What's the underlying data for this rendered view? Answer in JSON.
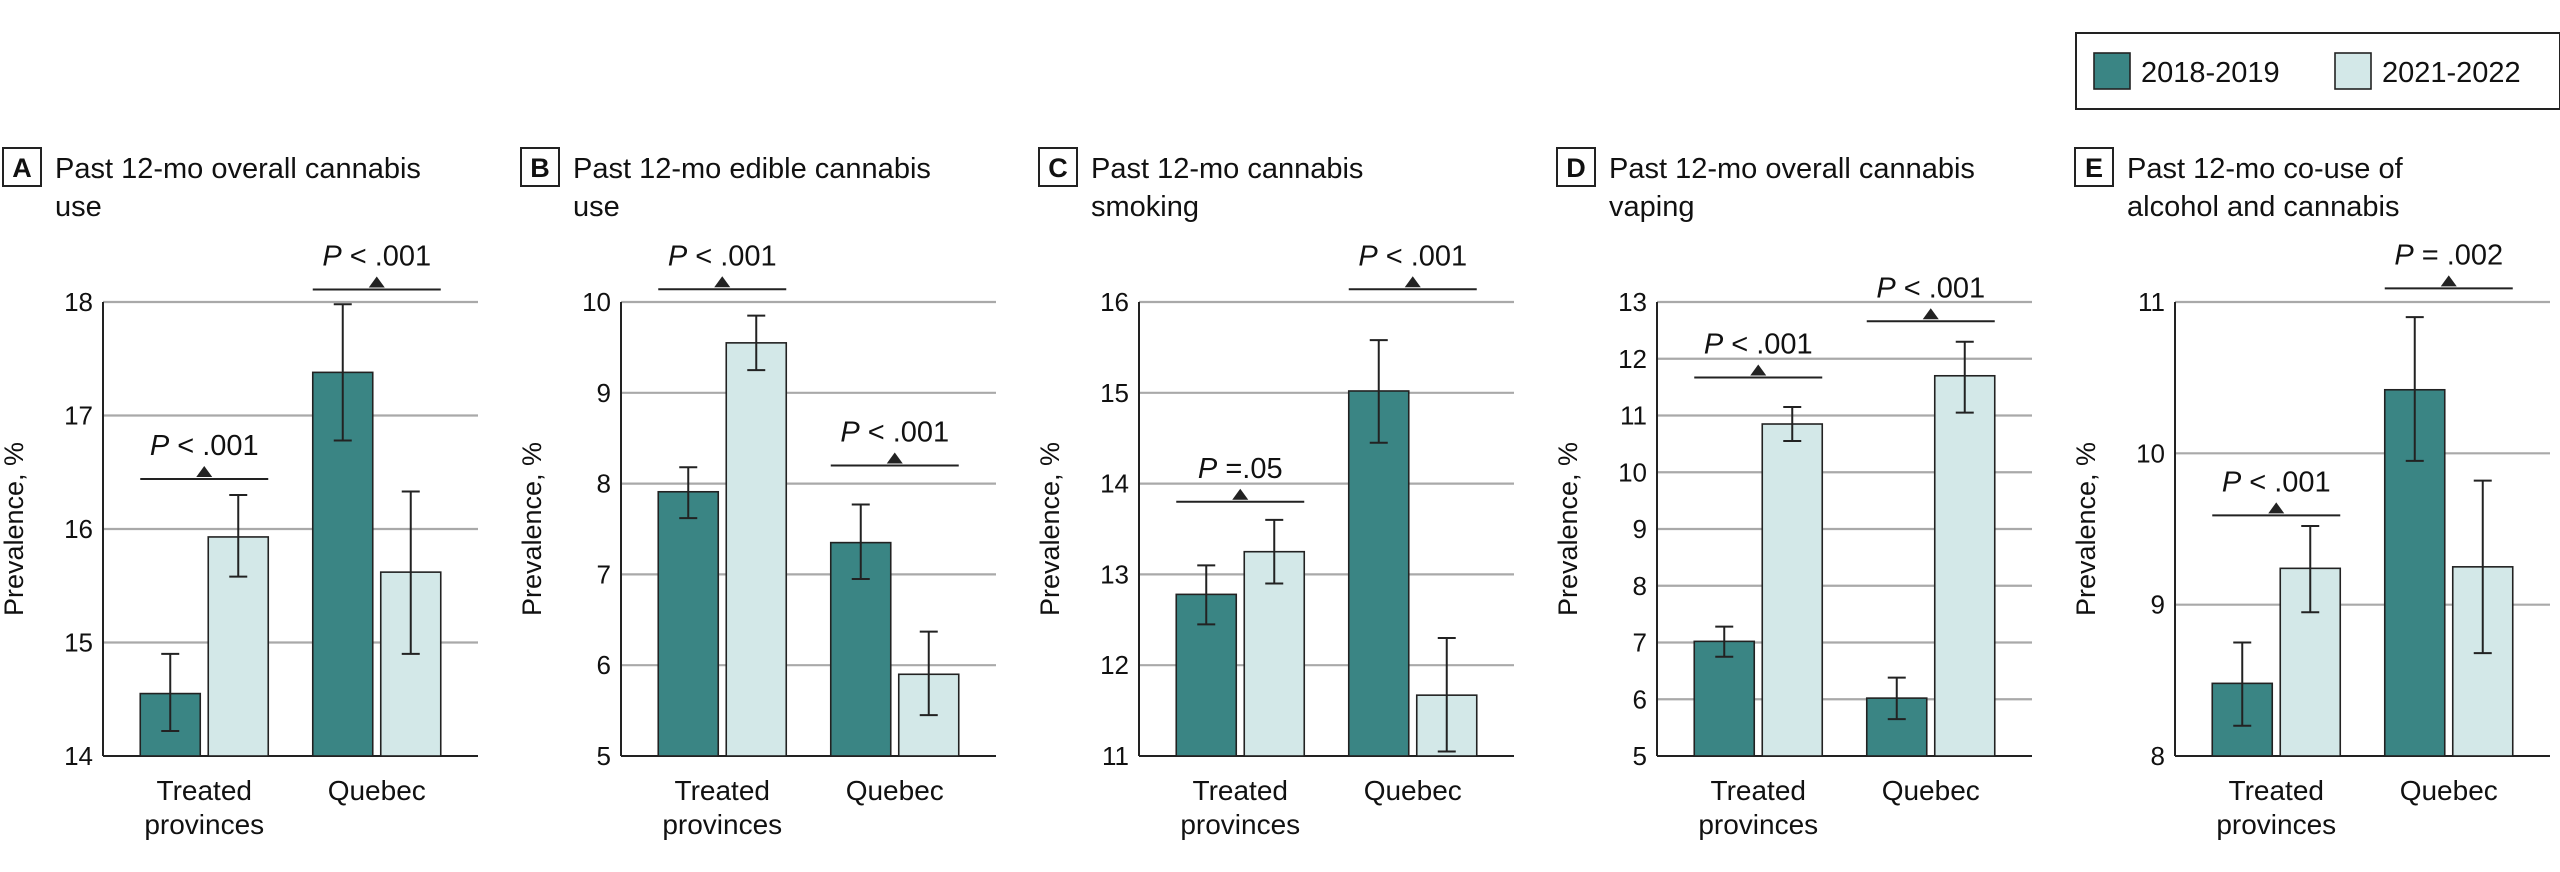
{
  "legend": {
    "items": [
      {
        "label": "2018-2019",
        "color": "#3a8584"
      },
      {
        "label": "2021-2022",
        "color": "#d3e8e8"
      }
    ]
  },
  "yaxis_label": "Prevalence, %",
  "chart_data": [
    {
      "type": "bar",
      "panel": "A",
      "title_lines": [
        "Past 12-mo overall cannabis",
        "use"
      ],
      "ylabel": "Prevalence, %",
      "ylim": [
        14,
        18
      ],
      "yticks": [
        14,
        15,
        16,
        17,
        18
      ],
      "categories": [
        [
          "Treated",
          "provinces"
        ],
        [
          "Quebec"
        ]
      ],
      "series": [
        {
          "name": "2018-2019",
          "values": [
            14.55,
            17.38
          ],
          "ci_low": [
            14.22,
            16.78
          ],
          "ci_high": [
            14.9,
            17.98
          ]
        },
        {
          "name": "2021-2022",
          "values": [
            15.93,
            15.62
          ],
          "ci_low": [
            15.58,
            14.9
          ],
          "ci_high": [
            16.3,
            16.33
          ]
        }
      ],
      "comparisons": [
        {
          "label": "P < .001",
          "category": 0,
          "y": 16.44
        },
        {
          "label": "P < .001",
          "category": 1,
          "y": 18.11
        }
      ]
    },
    {
      "type": "bar",
      "panel": "B",
      "title_lines": [
        "Past 12-mo edible cannabis",
        "use"
      ],
      "ylabel": "Prevalence, %",
      "ylim": [
        5,
        10
      ],
      "yticks": [
        5,
        6,
        7,
        8,
        9,
        10
      ],
      "categories": [
        [
          "Treated",
          "provinces"
        ],
        [
          "Quebec"
        ]
      ],
      "series": [
        {
          "name": "2018-2019",
          "values": [
            7.91,
            7.35
          ],
          "ci_low": [
            7.62,
            6.95
          ],
          "ci_high": [
            8.18,
            7.77
          ]
        },
        {
          "name": "2021-2022",
          "values": [
            9.55,
            5.9
          ],
          "ci_low": [
            9.25,
            5.45
          ],
          "ci_high": [
            9.85,
            6.37
          ]
        }
      ],
      "comparisons": [
        {
          "label": "P < .001",
          "category": 0,
          "y": 10.14
        },
        {
          "label": "P < .001",
          "category": 1,
          "y": 8.2
        }
      ]
    },
    {
      "type": "bar",
      "panel": "C",
      "title_lines": [
        "Past 12-mo cannabis",
        "smoking"
      ],
      "ylabel": "Prevalence, %",
      "ylim": [
        11,
        16
      ],
      "yticks": [
        11,
        12,
        13,
        14,
        15,
        16
      ],
      "categories": [
        [
          "Treated",
          "provinces"
        ],
        [
          "Quebec"
        ]
      ],
      "series": [
        {
          "name": "2018-2019",
          "values": [
            12.78,
            15.02
          ],
          "ci_low": [
            12.45,
            14.45
          ],
          "ci_high": [
            13.1,
            15.58
          ]
        },
        {
          "name": "2021-2022",
          "values": [
            13.25,
            11.67
          ],
          "ci_low": [
            12.9,
            11.05
          ],
          "ci_high": [
            13.6,
            12.3
          ]
        }
      ],
      "comparisons": [
        {
          "label": "P =.05",
          "category": 0,
          "y": 13.8
        },
        {
          "label": "P < .001",
          "category": 1,
          "y": 16.14
        }
      ]
    },
    {
      "type": "bar",
      "panel": "D",
      "title_lines": [
        "Past 12-mo overall cannabis",
        "vaping"
      ],
      "ylabel": "Prevalence, %",
      "ylim": [
        5,
        13
      ],
      "yticks": [
        5,
        6,
        7,
        8,
        9,
        10,
        11,
        12,
        13
      ],
      "categories": [
        [
          "Treated",
          "provinces"
        ],
        [
          "Quebec"
        ]
      ],
      "series": [
        {
          "name": "2018-2019",
          "values": [
            7.02,
            6.02
          ],
          "ci_low": [
            6.75,
            5.65
          ],
          "ci_high": [
            7.28,
            6.38
          ]
        },
        {
          "name": "2021-2022",
          "values": [
            10.85,
            11.7
          ],
          "ci_low": [
            10.55,
            11.05
          ],
          "ci_high": [
            11.15,
            12.3
          ]
        }
      ],
      "comparisons": [
        {
          "label": "P < .001",
          "category": 0,
          "y": 11.67
        },
        {
          "label": "P < .001",
          "category": 1,
          "y": 12.66
        }
      ]
    },
    {
      "type": "bar",
      "panel": "E",
      "title_lines": [
        "Past 12-mo co-use of",
        "alcohol and cannabis"
      ],
      "ylabel": "Prevalence, %",
      "ylim": [
        8,
        11
      ],
      "yticks": [
        8,
        9,
        10,
        11
      ],
      "categories": [
        [
          "Treated",
          "provinces"
        ],
        [
          "Quebec"
        ]
      ],
      "series": [
        {
          "name": "2018-2019",
          "values": [
            8.48,
            10.42
          ],
          "ci_low": [
            8.2,
            9.95
          ],
          "ci_high": [
            8.75,
            10.9
          ]
        },
        {
          "name": "2021-2022",
          "values": [
            9.24,
            9.25
          ],
          "ci_low": [
            8.95,
            8.68
          ],
          "ci_high": [
            9.52,
            9.82
          ]
        }
      ],
      "comparisons": [
        {
          "label": "P < .001",
          "category": 0,
          "y": 9.59
        },
        {
          "label": "P = .002",
          "category": 1,
          "y": 11.09
        }
      ]
    }
  ]
}
